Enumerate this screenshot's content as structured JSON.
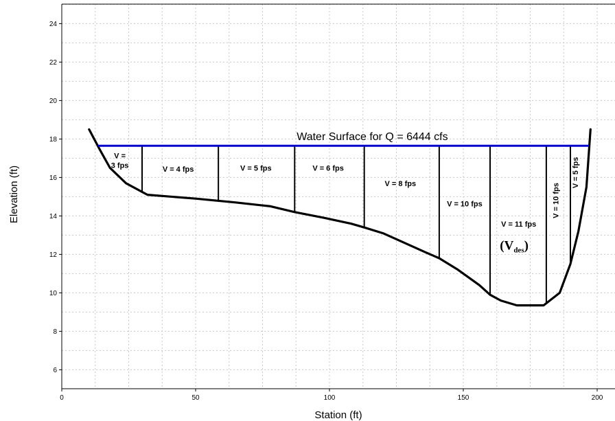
{
  "chart_data": {
    "type": "line",
    "xlabel": "Station (ft)",
    "ylabel": "Elevation (ft)",
    "xlim": [
      0,
      205
    ],
    "ylim": [
      5,
      25.4
    ],
    "x_ticks": [
      "0",
      "50",
      "100",
      "150",
      "200"
    ],
    "y_ticks": [
      "6",
      "8",
      "10",
      "12",
      "14",
      "16",
      "18",
      "20",
      "22",
      "24"
    ],
    "grid": true,
    "series": [
      {
        "role": "ground-profile",
        "color": "#000000",
        "x": [
          10.2,
          14,
          18,
          24,
          32,
          50,
          65,
          78,
          87,
          98,
          108,
          113,
          120,
          128,
          136,
          141,
          148,
          156,
          160,
          164,
          170,
          180,
          186,
          190,
          193,
          196,
          197.5
        ],
        "y": [
          18.5,
          17.5,
          16.5,
          15.7,
          15.1,
          14.9,
          14.7,
          14.5,
          14.2,
          13.9,
          13.6,
          13.4,
          13.1,
          12.6,
          12.1,
          11.8,
          11.2,
          10.4,
          9.9,
          9.6,
          9.35,
          9.35,
          10.0,
          11.5,
          13.2,
          15.5,
          18.5
        ]
      },
      {
        "role": "water-surface",
        "color": "#0000cc",
        "x": [
          13.5,
          197
        ],
        "y": [
          17.65,
          17.65
        ]
      }
    ],
    "subdivision_stations": [
      30,
      58.5,
      87,
      113,
      141,
      160,
      181,
      190
    ],
    "annotations": {
      "water_surface": "Water Surface for Q = 6444 cfs",
      "design_velocity_main": "V",
      "design_velocity_sub": "des",
      "velocities": [
        {
          "lines": [
            "V =",
            "3 fps"
          ],
          "x": 21.7,
          "y": 17.0
        },
        {
          "lines": [
            "V = 4 fps"
          ],
          "x": 43.5,
          "y": 16.3
        },
        {
          "lines": [
            "V = 5 fps"
          ],
          "x": 72.5,
          "y": 16.35
        },
        {
          "lines": [
            "V = 6 fps"
          ],
          "x": 99.5,
          "y": 16.35
        },
        {
          "lines": [
            "V = 8 fps"
          ],
          "x": 126.5,
          "y": 15.55
        },
        {
          "lines": [
            "V = 10 fps"
          ],
          "x": 150.5,
          "y": 14.5
        },
        {
          "lines": [
            "V = 11 fps"
          ],
          "x": 170.7,
          "y": 13.45
        },
        {
          "lines": [
            "V = 10 fps"
          ],
          "x": 185.5,
          "y": 14.8,
          "rotate": -90
        },
        {
          "lines": [
            "V = 5 fps"
          ],
          "x": 192.8,
          "y": 16.25,
          "rotate": -90
        }
      ]
    }
  }
}
